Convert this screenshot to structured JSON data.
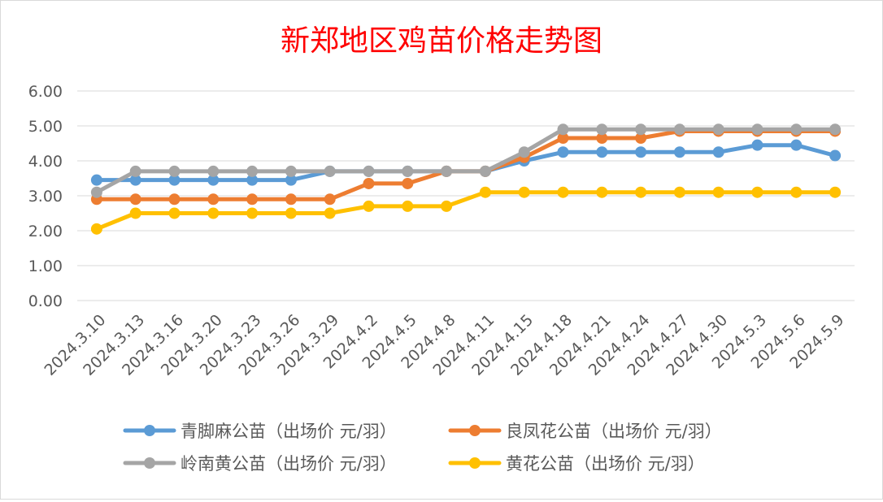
{
  "chart_data": {
    "type": "line",
    "title": "新郑地区鸡苗价格走势图",
    "xlabel": "",
    "ylabel": "",
    "ylim": [
      0,
      6
    ],
    "yticks": [
      "0.00",
      "1.00",
      "2.00",
      "3.00",
      "4.00",
      "5.00",
      "6.00"
    ],
    "grid": true,
    "legend_position": "bottom",
    "categories": [
      "2024.3.10",
      "2024.3.13",
      "2024.3.16",
      "2024.3.20",
      "2024.3.23",
      "2024.3.26",
      "2024.3.29",
      "2024.4.2",
      "2024.4.5",
      "2024.4.8",
      "2024.4.11",
      "2024.4.15",
      "2024.4.18",
      "2024.4.21",
      "2024.4.24",
      "2024.4.27",
      "2024.4.30",
      "2024.5.3",
      "2024.5.6",
      "2024.5.9"
    ],
    "series": [
      {
        "name": "青脚麻公苗（出场价 元/羽）",
        "color": "#5B9BD5",
        "values": [
          3.45,
          3.45,
          3.45,
          3.45,
          3.45,
          3.45,
          3.7,
          3.7,
          3.7,
          3.7,
          3.7,
          4.0,
          4.25,
          4.25,
          4.25,
          4.25,
          4.25,
          4.45,
          4.45,
          4.15
        ]
      },
      {
        "name": "良凤花公苗（出场价 元/羽）",
        "color": "#ED7D31",
        "values": [
          2.9,
          2.9,
          2.9,
          2.9,
          2.9,
          2.9,
          2.9,
          3.35,
          3.35,
          3.7,
          3.7,
          4.1,
          4.65,
          4.65,
          4.65,
          4.85,
          4.85,
          4.85,
          4.85,
          4.85
        ]
      },
      {
        "name": "岭南黄公苗（出场价 元/羽）",
        "color": "#A5A5A5",
        "values": [
          3.1,
          3.7,
          3.7,
          3.7,
          3.7,
          3.7,
          3.7,
          3.7,
          3.7,
          3.7,
          3.7,
          4.25,
          4.9,
          4.9,
          4.9,
          4.9,
          4.9,
          4.9,
          4.9,
          4.9
        ]
      },
      {
        "name": "黄花公苗（出场价 元/羽）",
        "color": "#FFC000",
        "values": [
          2.05,
          2.5,
          2.5,
          2.5,
          2.5,
          2.5,
          2.5,
          2.7,
          2.7,
          2.7,
          3.1,
          3.1,
          3.1,
          3.1,
          3.1,
          3.1,
          3.1,
          3.1,
          3.1,
          3.1
        ]
      }
    ],
    "title_color": "#FF0000"
  }
}
